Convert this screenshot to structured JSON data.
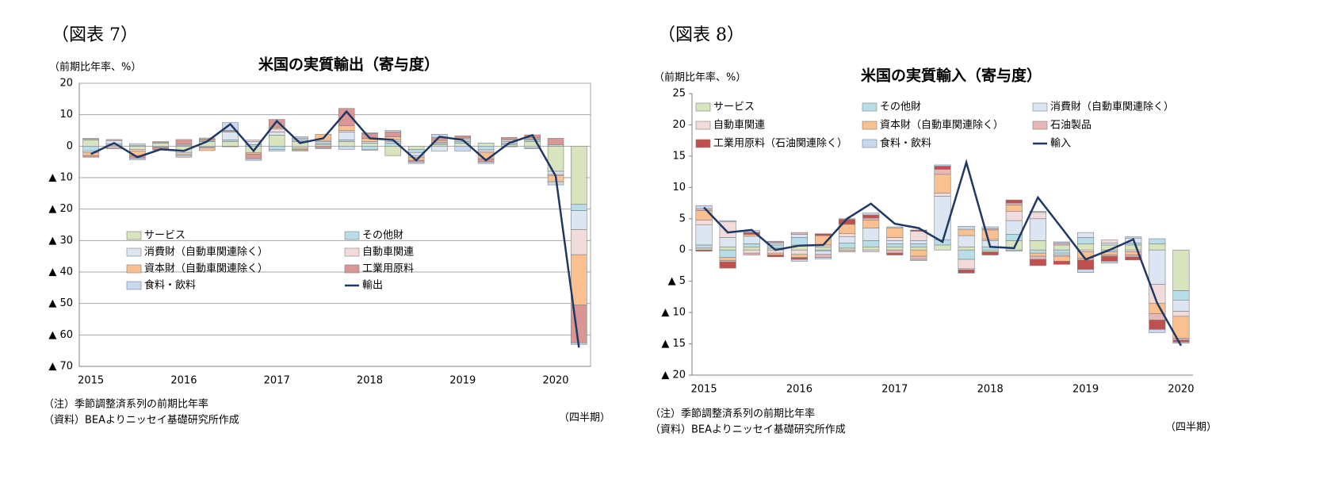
{
  "chart_data": [
    {
      "type": "bar",
      "figure_label": "（図表 7）",
      "title": "米国の実質輸出（寄与度）",
      "y_label": "（前期比年率、%）",
      "x_label": "（四半期）",
      "notes": [
        "（注）季節調整済系列の前期比年率",
        "（資料）BEAよりニッセイ基礎研究所作成"
      ],
      "categories": [
        "2015",
        null,
        null,
        null,
        "2016",
        null,
        null,
        null,
        "2017",
        null,
        null,
        null,
        "2018",
        null,
        null,
        null,
        "2019",
        null,
        null,
        null,
        "2020",
        null
      ],
      "ylim": [
        -70,
        20
      ],
      "yticks": [
        20,
        10,
        0,
        {
          "value": -10,
          "label": "▲ 10"
        },
        {
          "value": -20,
          "label": "▲ 20"
        },
        {
          "value": -30,
          "label": "▲ 30"
        },
        {
          "value": -40,
          "label": "▲ 40"
        },
        {
          "value": -50,
          "label": "▲ 50"
        },
        {
          "value": -60,
          "label": "▲ 60"
        },
        {
          "value": -70,
          "label": "▲ 70"
        }
      ],
      "grid": true,
      "legend": "lower-left",
      "series": [
        {
          "name": "サービス",
          "type": "bar",
          "color": "#d7e4bd",
          "values": [
            2,
            0.3,
            -1,
            1,
            -2,
            1.5,
            1.5,
            -2,
            3.5,
            1.5,
            0.5,
            1.5,
            1,
            -3,
            -1,
            0.5,
            1,
            1,
            0.5,
            1.5,
            -8,
            -18.5
          ]
        },
        {
          "name": "その他財",
          "type": "bar",
          "color": "#b7dee8",
          "values": [
            -1.5,
            0.5,
            0.3,
            0.2,
            0.3,
            0.3,
            0.5,
            0.5,
            -1,
            0.5,
            0.5,
            0.5,
            -1,
            1,
            -1,
            0.5,
            0.5,
            -1,
            0.5,
            0.5,
            0.5,
            -2
          ]
        },
        {
          "name": "消費財（自動車関連除く）",
          "type": "bar",
          "color": "#dce6f2",
          "values": [
            -0.5,
            1,
            0.5,
            -0.3,
            -0.5,
            -0.3,
            2.5,
            1,
            1,
            0.5,
            0.5,
            2.5,
            0.5,
            0.5,
            -1,
            -1.5,
            0.5,
            -0.5,
            0.5,
            -0.5,
            -1,
            -6
          ]
        },
        {
          "name": "自動車関連",
          "type": "bar",
          "color": "#f2dcdb",
          "values": [
            0.3,
            -0.5,
            -0.5,
            0.3,
            0.3,
            -0.3,
            0.2,
            0.5,
            1,
            -0.5,
            0.3,
            0.5,
            -0.3,
            0.5,
            -0.5,
            0.3,
            0.5,
            -0.5,
            0.5,
            0.3,
            -0.3,
            -8
          ]
        },
        {
          "name": "資本財（自動車関連除く）",
          "type": "bar",
          "color": "#fac090",
          "values": [
            -1,
            -0.3,
            -1.5,
            -0.3,
            -0.5,
            -0.8,
            0.3,
            -0.5,
            0.5,
            -0.5,
            2,
            1.5,
            1,
            1,
            -1,
            0.5,
            0.3,
            -2,
            0.3,
            0.3,
            -2,
            -16
          ]
        },
        {
          "name": "工業用原料",
          "type": "bar",
          "color": "#d99694",
          "values": [
            -0.5,
            0.3,
            -0.8,
            -0.5,
            1.5,
            0.5,
            -0.2,
            -1.5,
            2.5,
            -0.5,
            -0.5,
            5.5,
            1.5,
            1.5,
            -0.5,
            1,
            0.5,
            -1,
            0.5,
            1,
            2,
            -12
          ]
        },
        {
          "name": "食料・飲料",
          "type": "bar",
          "color": "#c6d9f1",
          "values": [
            0.2,
            0,
            -0.5,
            -0.1,
            -0.5,
            0.3,
            2.5,
            -0.5,
            -0.5,
            0.5,
            -0.3,
            -1,
            0.3,
            0.5,
            -0.5,
            1,
            -1.5,
            -0.5,
            -0.2,
            -0.3,
            -1,
            -0.5
          ]
        },
        {
          "name": "輸出",
          "type": "line",
          "color": "#1f3864",
          "values": [
            -2.5,
            1,
            -3.5,
            -1,
            -1.5,
            1.5,
            7,
            -1.5,
            8,
            1,
            2.5,
            11,
            2.5,
            2,
            -4.5,
            3,
            2,
            -4.5,
            1,
            3.5,
            -9.5,
            -64
          ]
        }
      ]
    },
    {
      "type": "bar",
      "figure_label": "（図表 8）",
      "title": "米国の実質輸入（寄与度）",
      "y_label": "（前期比年率、%）",
      "x_label": "（四半期）",
      "notes": [
        "（注）季節調整済系列の前期比年率",
        "（資料）BEAよりニッセイ基礎研究所作成"
      ],
      "categories": [
        "2015",
        null,
        null,
        null,
        "2016",
        null,
        null,
        null,
        "2017",
        null,
        null,
        null,
        "2018",
        null,
        null,
        null,
        "2019",
        null,
        null,
        null,
        "2020"
      ],
      "ylim": [
        -20,
        25
      ],
      "yticks": [
        25,
        20,
        15,
        10,
        5,
        0,
        {
          "value": -5,
          "label": "▲ 5"
        },
        {
          "value": -10,
          "label": "▲ 10"
        },
        {
          "value": -15,
          "label": "▲ 15"
        },
        {
          "value": -20,
          "label": "▲ 20"
        }
      ],
      "grid": false,
      "legend": "top",
      "series": [
        {
          "name": "サービス",
          "type": "bar",
          "color": "#d7e4bd",
          "values": [
            0.3,
            0.5,
            0.5,
            0.3,
            0.8,
            0.5,
            0.3,
            0.5,
            0.5,
            0.5,
            0.8,
            0.5,
            -0.3,
            1.5,
            1.5,
            0.8,
            1,
            0.8,
            0.8,
            1,
            -6.5
          ]
        },
        {
          "name": "その他財",
          "type": "bar",
          "color": "#b7dee8",
          "values": [
            0.5,
            -1.2,
            0.5,
            0.5,
            1.2,
            -0.2,
            0.8,
            1,
            0.5,
            0.5,
            0.8,
            -1.5,
            0.5,
            1,
            -0.5,
            -0.5,
            1,
            -0.3,
            0.3,
            0.8,
            -1.5
          ]
        },
        {
          "name": "消費財（自動車関連除く）",
          "type": "bar",
          "color": "#dce6f2",
          "values": [
            3.2,
            1.5,
            1.2,
            0.3,
            0.5,
            -0.5,
            1,
            2,
            0.5,
            0.5,
            7,
            1.8,
            1,
            2.2,
            3.5,
            -0.3,
            0.8,
            0.3,
            0.8,
            -5.5,
            -1.8
          ]
        },
        {
          "name": "自動車関連",
          "type": "bar",
          "color": "#f2dcdb",
          "values": [
            0.8,
            2.5,
            -0.5,
            -0.5,
            -0.7,
            0.3,
            0.5,
            -0.3,
            0.5,
            1.5,
            0.5,
            -1.5,
            0.2,
            1.5,
            1,
            -0.2,
            -0.3,
            0.5,
            -0.3,
            -3,
            -0.8
          ]
        },
        {
          "name": "資本財（自動車関連除く）",
          "type": "bar",
          "color": "#fac090",
          "values": [
            1.5,
            -0.5,
            0.3,
            -0.3,
            -0.5,
            1.5,
            1.5,
            1.3,
            1.5,
            -1,
            3,
            1,
            1.5,
            1,
            -0.5,
            -0.8,
            -1,
            -0.5,
            -0.5,
            -1.7,
            -3.5
          ]
        },
        {
          "name": "石油製品",
          "type": "bar",
          "color": "#e6b9b8",
          "values": [
            0.3,
            -0.2,
            -0.3,
            0.2,
            0.3,
            -0.5,
            -0.3,
            0.3,
            -0.5,
            -0.5,
            0.8,
            -0.2,
            0.2,
            0.3,
            -0.5,
            0.3,
            -0.3,
            -0.2,
            -0.3,
            -1,
            -0.3
          ]
        },
        {
          "name": "工業用原料（石油関連除く）",
          "type": "bar",
          "color": "#c0504d",
          "values": [
            -0.2,
            -1,
            0.3,
            -0.3,
            -0.3,
            0.3,
            0.8,
            0.5,
            -0.3,
            0.2,
            0.5,
            -0.5,
            -0.5,
            0.5,
            -1,
            -0.5,
            -1.5,
            -0.8,
            -0.5,
            -1.5,
            -0.3
          ]
        },
        {
          "name": "食料・飲料",
          "type": "bar",
          "color": "#c6d9f1",
          "values": [
            0.5,
            0.2,
            0.3,
            0.1,
            -0.3,
            -0.2,
            0.1,
            0.3,
            0.2,
            -0.2,
            0.2,
            0.5,
            0.3,
            -0.2,
            0.2,
            0.2,
            -0.5,
            -0.3,
            0.2,
            -0.5,
            -0.2
          ]
        },
        {
          "name": "輸入",
          "type": "line",
          "color": "#1f3864",
          "values": [
            6.8,
            2.8,
            3.2,
            0,
            0.7,
            0.8,
            5,
            7.4,
            4.2,
            3.5,
            1.3,
            14,
            0.5,
            0.3,
            8.4,
            3.5,
            -1.5,
            0,
            1.7,
            -8.5,
            -15.3
          ]
        }
      ]
    }
  ]
}
